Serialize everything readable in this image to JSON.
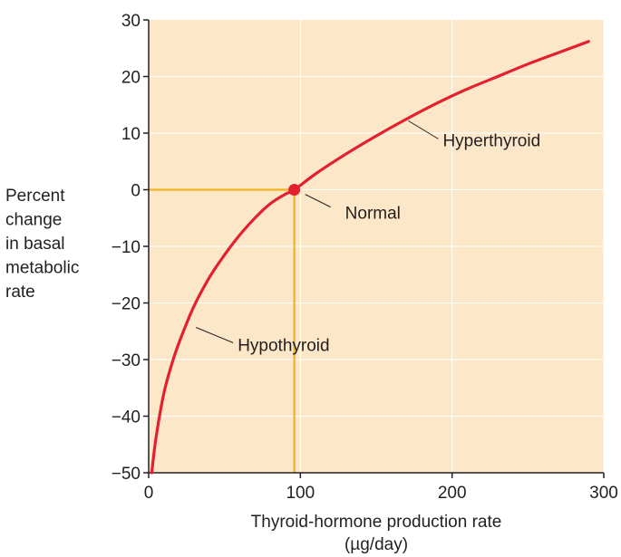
{
  "chart_data": {
    "type": "line",
    "title": "",
    "xlabel": [
      "Thyroid-hormone production rate",
      "(µg/day)"
    ],
    "ylabel": [
      "Percent",
      "change",
      "in basal",
      "metabolic",
      "rate"
    ],
    "xlim": [
      0,
      300
    ],
    "ylim": [
      -50,
      30
    ],
    "xticks": [
      0,
      100,
      200,
      300
    ],
    "yticks": [
      30,
      20,
      10,
      0,
      -10,
      -20,
      -30,
      -40,
      -50
    ],
    "grid": true,
    "series": [
      {
        "name": "",
        "color": "#e3202f",
        "x": [
          2,
          5,
          10,
          15,
          20,
          30,
          40,
          50,
          60,
          70,
          80,
          90,
          96,
          110,
          130,
          150,
          170,
          190,
          210,
          230,
          250,
          270,
          290
        ],
        "y": [
          -50,
          -43.5,
          -36,
          -31,
          -27,
          -20.5,
          -15.5,
          -11.5,
          -8,
          -5,
          -2.5,
          -0.8,
          0,
          2.8,
          6.3,
          9.5,
          12.5,
          15.3,
          17.8,
          20,
          22.2,
          24.2,
          26.2
        ]
      }
    ],
    "marker": {
      "x": 96,
      "y": 0,
      "color": "#e3202f"
    },
    "reference_lines": {
      "x": 96,
      "y": 0,
      "color": "#f0b323"
    },
    "annotations": [
      {
        "text": "Hyperthyroid",
        "x": 170,
        "y": 12.5
      },
      {
        "text": "Normal",
        "x": 102,
        "y": -0.5
      },
      {
        "text": "Hypothyroid",
        "x": 30,
        "y": -24
      }
    ],
    "colors": {
      "plot_background": "#fce8c8",
      "grid": "#ffffff",
      "axis": "#231f20",
      "curve": "#e3202f",
      "reference": "#f0b323"
    }
  }
}
